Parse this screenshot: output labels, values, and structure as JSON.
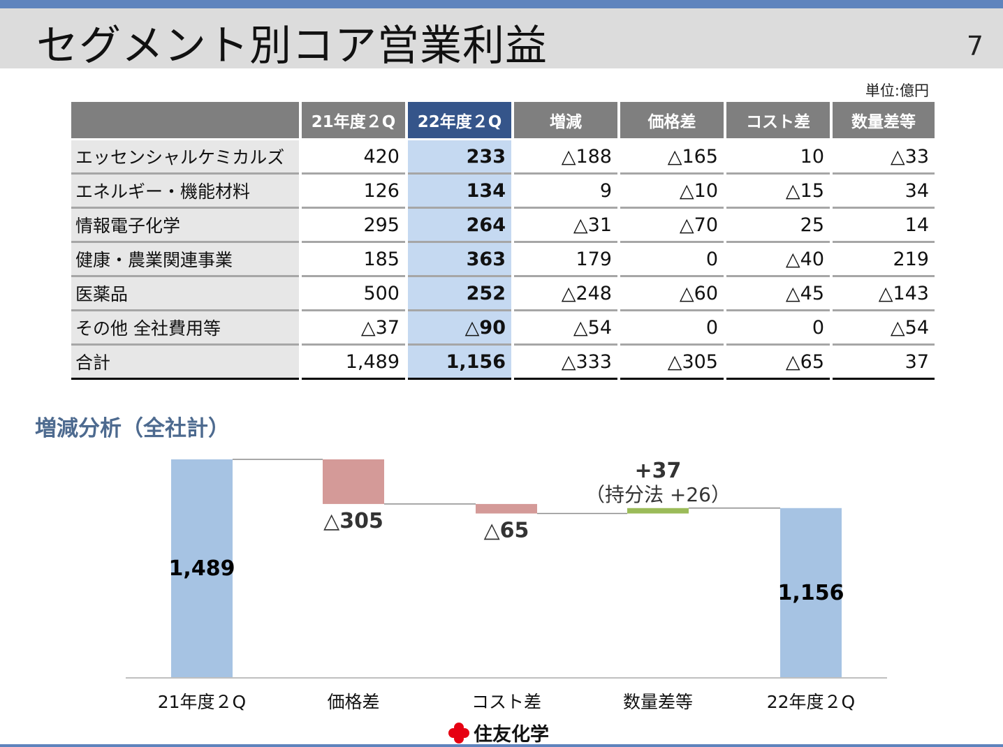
{
  "header": {
    "title": "セグメント別コア営業利益",
    "page_number": "7"
  },
  "table": {
    "unit_label": "単位:億円",
    "columns": [
      "",
      "21年度２Q",
      "22年度２Q",
      "増減",
      "価格差",
      "コスト差",
      "数量差等"
    ],
    "rows": [
      [
        "エッセンシャルケミカルズ",
        "420",
        "233",
        "△188",
        "△165",
        "10",
        "△33"
      ],
      [
        "エネルギー・機能材料",
        "126",
        "134",
        "9",
        "△10",
        "△15",
        "34"
      ],
      [
        "情報電子化学",
        "295",
        "264",
        "△31",
        "△70",
        "25",
        "14"
      ],
      [
        "健康・農業関連事業",
        "185",
        "363",
        "179",
        "0",
        "△40",
        "219"
      ],
      [
        "医薬品",
        "500",
        "252",
        "△248",
        "△60",
        "△45",
        "△143"
      ],
      [
        "その他 全社費用等",
        "△37",
        "△90",
        "△54",
        "0",
        "0",
        "△54"
      ],
      [
        "合計",
        "1,489",
        "1,156",
        "△333",
        "△305",
        "△65",
        "37"
      ]
    ]
  },
  "analysis_title": "増減分析（全社計）",
  "chart_data": {
    "type": "bar",
    "subtype": "waterfall",
    "categories": [
      "21年度２Q",
      "価格差",
      "コスト差",
      "数量差等",
      "22年度２Q"
    ],
    "values": [
      1489,
      -305,
      -65,
      37,
      1156
    ],
    "kinds": [
      "total",
      "delta",
      "delta",
      "delta",
      "total"
    ],
    "data_labels": [
      "1,489",
      "△305",
      "△65",
      "+37",
      "1,156"
    ],
    "annotation": "（持分法 +26）",
    "colors": {
      "total": "#a6c3e3",
      "negative": "#d49a98",
      "positive": "#9bbb59"
    },
    "ylim": [
      0,
      1489
    ]
  },
  "footer": {
    "company": "住友化学",
    "logo_color": "#e60012"
  }
}
